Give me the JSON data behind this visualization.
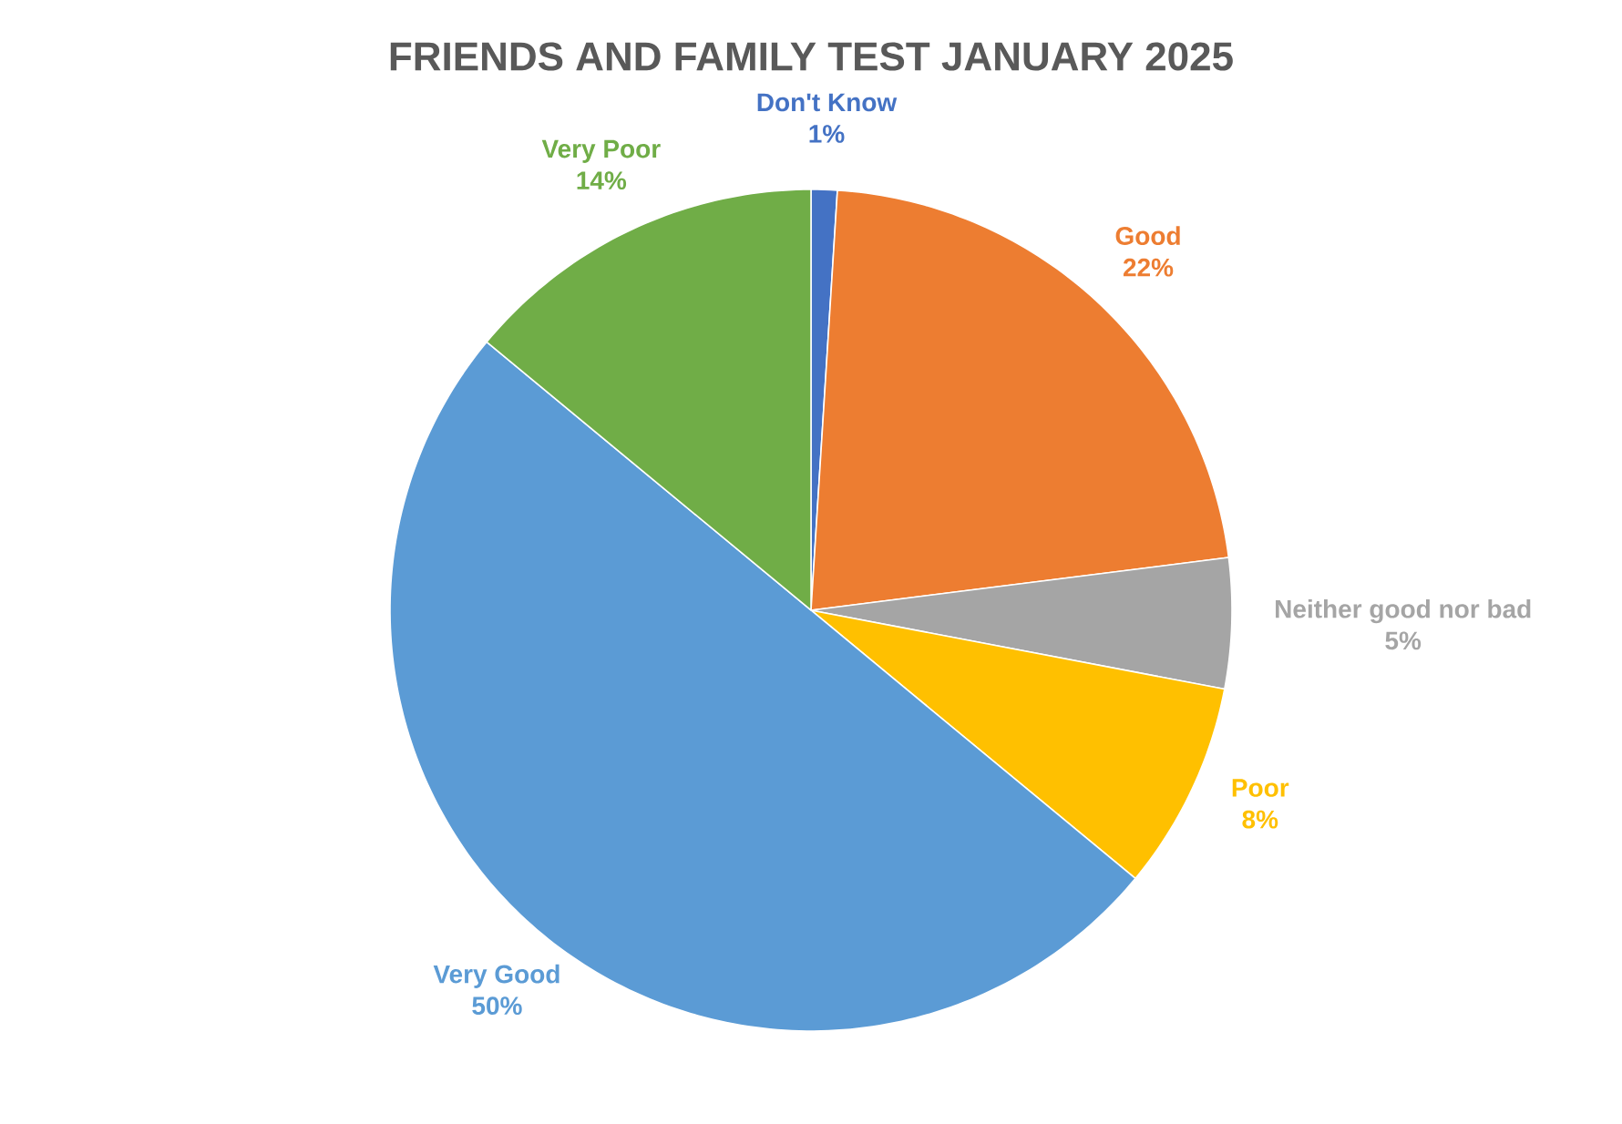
{
  "chart_data": {
    "type": "pie",
    "title": "FRIENDS AND FAMILY TEST JANUARY 2025",
    "categories": [
      "Don't Know",
      "Good",
      "Neither good nor bad",
      "Poor",
      "Very Good",
      "Very Poor"
    ],
    "values": [
      1,
      22,
      5,
      8,
      50,
      14
    ],
    "colors": [
      "#4472c4",
      "#ed7d31",
      "#a5a5a5",
      "#ffc000",
      "#5b9bd5",
      "#70ad47"
    ],
    "value_labels": [
      "1%",
      "22%",
      "5%",
      "8%",
      "50%",
      "14%"
    ]
  }
}
